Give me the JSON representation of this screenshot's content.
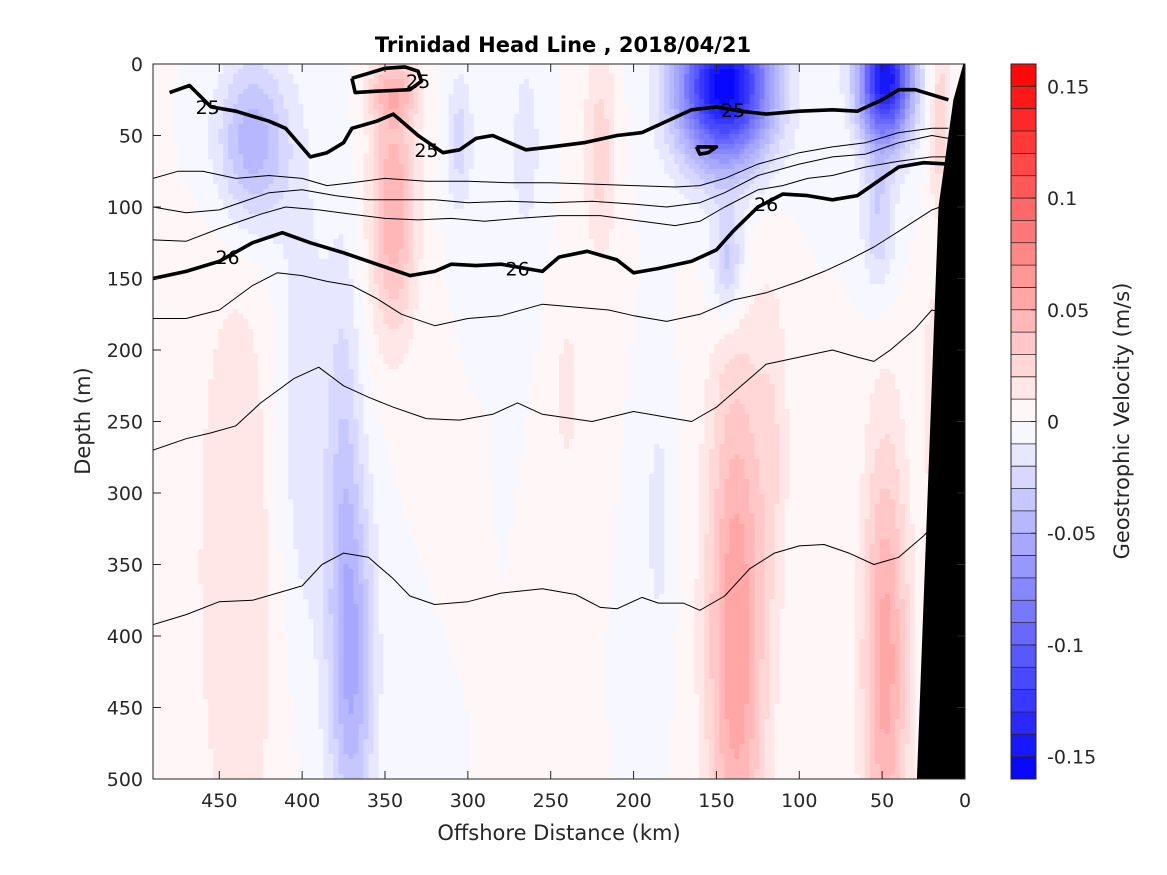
{
  "chart_data": {
    "type": "contour",
    "title": "Trinidad Head Line , 2018/04/21",
    "xlabel": "Offshore Distance (km)",
    "ylabel": "Depth (m)",
    "colorbar_label": "Geostrophic Velocity (m/s)",
    "xlim": [
      490,
      0
    ],
    "ylim": [
      0,
      500
    ],
    "x_reversed": true,
    "y_reversed": true,
    "xticks": [
      450,
      400,
      350,
      300,
      250,
      200,
      150,
      100,
      50,
      0
    ],
    "yticks": [
      0,
      50,
      100,
      150,
      200,
      250,
      300,
      350,
      400,
      450,
      500
    ],
    "colorbar": {
      "range": [
        -0.16,
        0.16
      ],
      "ticks": [
        0.15,
        0.1,
        0.05,
        0,
        -0.05,
        -0.1,
        -0.15
      ],
      "tick_labels": [
        "0.15",
        "0.1",
        "0.05",
        "0",
        "-0.05",
        "-0.1",
        "-0.15"
      ],
      "levels": 32,
      "positive_color": "#ff0000",
      "negative_color": "#0000ff"
    },
    "velocity_features": [
      {
        "x": 430,
        "y": 55,
        "rx": 22,
        "ry": 60,
        "v": -0.05
      },
      {
        "x": 400,
        "y": 250,
        "rx": 18,
        "ry": 170,
        "v": -0.02
      },
      {
        "x": 438,
        "y": 350,
        "rx": 28,
        "ry": 230,
        "v": 0.02
      },
      {
        "x": 345,
        "y": 100,
        "rx": 14,
        "ry": 90,
        "v": 0.05
      },
      {
        "x": 345,
        "y": 20,
        "rx": 16,
        "ry": 20,
        "v": 0.03
      },
      {
        "x": 370,
        "y": 420,
        "rx": 14,
        "ry": 130,
        "v": -0.05
      },
      {
        "x": 375,
        "y": 260,
        "rx": 10,
        "ry": 150,
        "v": -0.02
      },
      {
        "x": 305,
        "y": 55,
        "rx": 8,
        "ry": 50,
        "v": -0.025
      },
      {
        "x": 265,
        "y": 60,
        "rx": 8,
        "ry": 60,
        "v": -0.02
      },
      {
        "x": 220,
        "y": 60,
        "rx": 10,
        "ry": 80,
        "v": 0.025
      },
      {
        "x": 240,
        "y": 230,
        "rx": 8,
        "ry": 60,
        "v": 0.015
      },
      {
        "x": 185,
        "y": 320,
        "rx": 8,
        "ry": 90,
        "v": -0.015
      },
      {
        "x": 145,
        "y": 15,
        "rx": 28,
        "ry": 55,
        "v": -0.16
      },
      {
        "x": 143,
        "y": 140,
        "rx": 10,
        "ry": 40,
        "v": -0.04
      },
      {
        "x": 138,
        "y": 400,
        "rx": 18,
        "ry": 200,
        "v": 0.06
      },
      {
        "x": 115,
        "y": 260,
        "rx": 10,
        "ry": 120,
        "v": 0.015
      },
      {
        "x": 48,
        "y": 10,
        "rx": 16,
        "ry": 45,
        "v": -0.15
      },
      {
        "x": 52,
        "y": 110,
        "rx": 10,
        "ry": 50,
        "v": -0.03
      },
      {
        "x": 48,
        "y": 420,
        "rx": 14,
        "ry": 160,
        "v": 0.055
      },
      {
        "x": 15,
        "y": 40,
        "rx": 6,
        "ry": 60,
        "v": 0.03
      },
      {
        "x": 20,
        "y": 230,
        "rx": 6,
        "ry": 100,
        "v": 0.015
      }
    ],
    "density_contours": [
      {
        "label": "25",
        "bold": true,
        "labels_at": [
          [
            457,
            30
          ],
          [
            325,
            60
          ],
          [
            140,
            32
          ]
        ],
        "points": [
          [
            480,
            20
          ],
          [
            468,
            15
          ],
          [
            455,
            30
          ],
          [
            440,
            33
          ],
          [
            420,
            40
          ],
          [
            410,
            45
          ],
          [
            395,
            65
          ],
          [
            385,
            62
          ],
          [
            375,
            55
          ],
          [
            370,
            45
          ],
          [
            355,
            40
          ],
          [
            345,
            35
          ],
          [
            330,
            50
          ],
          [
            315,
            62
          ],
          [
            305,
            60
          ],
          [
            295,
            52
          ],
          [
            285,
            50
          ],
          [
            275,
            55
          ],
          [
            265,
            60
          ],
          [
            250,
            58
          ],
          [
            230,
            55
          ],
          [
            210,
            50
          ],
          [
            195,
            48
          ],
          [
            180,
            40
          ],
          [
            165,
            32
          ],
          [
            150,
            30
          ],
          [
            135,
            33
          ],
          [
            120,
            35
          ],
          [
            100,
            33
          ],
          [
            80,
            32
          ],
          [
            65,
            33
          ],
          [
            50,
            25
          ],
          [
            40,
            18
          ],
          [
            30,
            18
          ],
          [
            10,
            25
          ]
        ]
      },
      {
        "label": "25",
        "bold": true,
        "labels_at": [
          [
            330,
            12
          ]
        ],
        "points": [
          [
            370,
            10
          ],
          [
            350,
            3
          ],
          [
            338,
            2
          ],
          [
            330,
            5
          ],
          [
            328,
            12
          ],
          [
            335,
            18
          ],
          [
            355,
            19
          ],
          [
            368,
            20
          ],
          [
            370,
            10
          ]
        ]
      },
      {
        "label": "",
        "bold": true,
        "labels_at": [],
        "points": [
          [
            162,
            58
          ],
          [
            150,
            58
          ],
          [
            155,
            62
          ],
          [
            160,
            63
          ],
          [
            162,
            58
          ]
        ]
      },
      {
        "label": "",
        "bold": false,
        "labels_at": [],
        "points": [
          [
            490,
            80
          ],
          [
            475,
            75
          ],
          [
            460,
            75
          ],
          [
            440,
            80
          ],
          [
            420,
            78
          ],
          [
            400,
            80
          ],
          [
            385,
            85
          ],
          [
            370,
            83
          ],
          [
            350,
            80
          ],
          [
            325,
            82
          ],
          [
            300,
            82
          ],
          [
            275,
            83
          ],
          [
            250,
            83
          ],
          [
            225,
            84
          ],
          [
            200,
            85
          ],
          [
            175,
            86
          ],
          [
            160,
            85
          ],
          [
            145,
            80
          ],
          [
            125,
            70
          ],
          [
            100,
            62
          ],
          [
            80,
            58
          ],
          [
            60,
            55
          ],
          [
            40,
            48
          ],
          [
            20,
            45
          ],
          [
            10,
            45
          ]
        ]
      },
      {
        "label": "",
        "bold": false,
        "labels_at": [],
        "points": [
          [
            490,
            100
          ],
          [
            470,
            104
          ],
          [
            450,
            102
          ],
          [
            420,
            90
          ],
          [
            400,
            88
          ],
          [
            380,
            92
          ],
          [
            360,
            95
          ],
          [
            340,
            95
          ],
          [
            320,
            95
          ],
          [
            300,
            97
          ],
          [
            275,
            96
          ],
          [
            250,
            97
          ],
          [
            225,
            96
          ],
          [
            200,
            98
          ],
          [
            180,
            100
          ],
          [
            160,
            97
          ],
          [
            145,
            90
          ],
          [
            125,
            78
          ],
          [
            100,
            70
          ],
          [
            80,
            65
          ],
          [
            60,
            63
          ],
          [
            40,
            55
          ],
          [
            20,
            50
          ],
          [
            10,
            52
          ]
        ]
      },
      {
        "label": "",
        "bold": false,
        "labels_at": [],
        "points": [
          [
            490,
            123
          ],
          [
            470,
            124
          ],
          [
            450,
            115
          ],
          [
            425,
            105
          ],
          [
            410,
            100
          ],
          [
            390,
            102
          ],
          [
            370,
            105
          ],
          [
            350,
            108
          ],
          [
            330,
            109
          ],
          [
            310,
            108
          ],
          [
            290,
            110
          ],
          [
            270,
            108
          ],
          [
            245,
            106
          ],
          [
            220,
            106
          ],
          [
            195,
            110
          ],
          [
            175,
            113
          ],
          [
            160,
            110
          ],
          [
            145,
            100
          ],
          [
            125,
            88
          ],
          [
            110,
            85
          ],
          [
            95,
            80
          ],
          [
            80,
            78
          ],
          [
            60,
            72
          ],
          [
            40,
            68
          ],
          [
            20,
            65
          ],
          [
            10,
            65
          ]
        ]
      },
      {
        "label": "26",
        "bold": true,
        "labels_at": [
          [
            445,
            135
          ],
          [
            270,
            143
          ],
          [
            120,
            98
          ]
        ],
        "points": [
          [
            490,
            150
          ],
          [
            470,
            145
          ],
          [
            450,
            138
          ],
          [
            430,
            125
          ],
          [
            412,
            118
          ],
          [
            395,
            125
          ],
          [
            375,
            132
          ],
          [
            360,
            138
          ],
          [
            335,
            148
          ],
          [
            320,
            145
          ],
          [
            310,
            140
          ],
          [
            295,
            141
          ],
          [
            280,
            140
          ],
          [
            255,
            145
          ],
          [
            245,
            135
          ],
          [
            228,
            131
          ],
          [
            210,
            137
          ],
          [
            200,
            146
          ],
          [
            185,
            143
          ],
          [
            165,
            138
          ],
          [
            150,
            130
          ],
          [
            140,
            117
          ],
          [
            125,
            100
          ],
          [
            110,
            91
          ],
          [
            95,
            92
          ],
          [
            80,
            95
          ],
          [
            65,
            92
          ],
          [
            50,
            80
          ],
          [
            40,
            72
          ],
          [
            25,
            69
          ],
          [
            10,
            70
          ]
        ]
      },
      {
        "label": "",
        "bold": false,
        "labels_at": [],
        "points": [
          [
            490,
            178
          ],
          [
            470,
            178
          ],
          [
            450,
            172
          ],
          [
            430,
            155
          ],
          [
            415,
            146
          ],
          [
            400,
            148
          ],
          [
            385,
            152
          ],
          [
            370,
            155
          ],
          [
            355,
            164
          ],
          [
            340,
            175
          ],
          [
            320,
            183
          ],
          [
            300,
            178
          ],
          [
            280,
            176
          ],
          [
            255,
            168
          ],
          [
            235,
            170
          ],
          [
            215,
            172
          ],
          [
            200,
            176
          ],
          [
            180,
            180
          ],
          [
            160,
            175
          ],
          [
            140,
            165
          ],
          [
            120,
            160
          ],
          [
            100,
            152
          ],
          [
            85,
            145
          ],
          [
            70,
            137
          ],
          [
            55,
            128
          ],
          [
            40,
            117
          ],
          [
            20,
            102
          ],
          [
            10,
            98
          ]
        ]
      },
      {
        "label": "",
        "bold": false,
        "labels_at": [],
        "points": [
          [
            490,
            270
          ],
          [
            470,
            262
          ],
          [
            455,
            258
          ],
          [
            440,
            253
          ],
          [
            425,
            237
          ],
          [
            405,
            220
          ],
          [
            390,
            212
          ],
          [
            375,
            225
          ],
          [
            360,
            233
          ],
          [
            345,
            240
          ],
          [
            325,
            248
          ],
          [
            305,
            249
          ],
          [
            285,
            245
          ],
          [
            270,
            237
          ],
          [
            255,
            245
          ],
          [
            225,
            250
          ],
          [
            200,
            243
          ],
          [
            180,
            247
          ],
          [
            165,
            250
          ],
          [
            150,
            240
          ],
          [
            135,
            225
          ],
          [
            120,
            210
          ],
          [
            100,
            205
          ],
          [
            80,
            200
          ],
          [
            65,
            205
          ],
          [
            55,
            208
          ],
          [
            45,
            200
          ],
          [
            30,
            185
          ],
          [
            20,
            172
          ],
          [
            10,
            175
          ]
        ]
      },
      {
        "label": "",
        "bold": false,
        "labels_at": [],
        "points": [
          [
            490,
            392
          ],
          [
            470,
            385
          ],
          [
            450,
            376
          ],
          [
            430,
            375
          ],
          [
            415,
            370
          ],
          [
            400,
            365
          ],
          [
            388,
            350
          ],
          [
            375,
            342
          ],
          [
            360,
            345
          ],
          [
            345,
            360
          ],
          [
            335,
            372
          ],
          [
            320,
            378
          ],
          [
            300,
            376
          ],
          [
            280,
            370
          ],
          [
            255,
            367
          ],
          [
            235,
            371
          ],
          [
            220,
            380
          ],
          [
            210,
            381
          ],
          [
            195,
            373
          ],
          [
            185,
            377
          ],
          [
            170,
            377
          ],
          [
            160,
            382
          ],
          [
            145,
            372
          ],
          [
            130,
            353
          ],
          [
            115,
            342
          ],
          [
            100,
            337
          ],
          [
            85,
            336
          ],
          [
            70,
            342
          ],
          [
            55,
            350
          ],
          [
            40,
            345
          ],
          [
            25,
            330
          ],
          [
            15,
            318
          ],
          [
            5,
            315
          ]
        ]
      }
    ],
    "bathymetry_polygon": [
      [
        29,
        500
      ],
      [
        16,
        100
      ],
      [
        7,
        25
      ],
      [
        1,
        0
      ],
      [
        0,
        0
      ],
      [
        0,
        500
      ]
    ]
  }
}
